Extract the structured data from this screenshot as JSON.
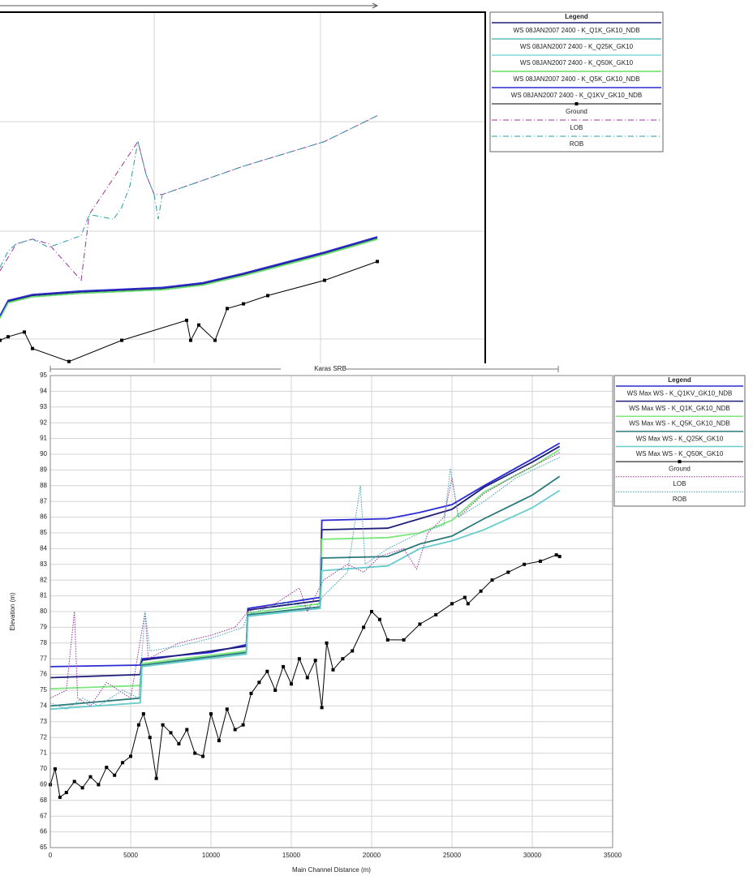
{
  "chart_data": [
    {
      "type": "line",
      "legend_title": "Legend",
      "xlim": [
        0,
        30000
      ],
      "ylim": [
        70,
        100
      ],
      "series": [
        {
          "name": "WS  08JAN2007 2400 - K_Q1K_GK10_NDB",
          "color": "#1f1f7a",
          "style": "solid",
          "x": [
            0,
            500,
            2000,
            5000,
            10000,
            12500,
            15000,
            17500,
            20000,
            23250
          ],
          "values": [
            74.1,
            75.4,
            75.9,
            76.2,
            76.5,
            76.9,
            77.7,
            78.6,
            79.5,
            80.8
          ]
        },
        {
          "name": "WS  08JAN2007 2400 - K_Q25K_GK10",
          "color": "#5fb8b8",
          "style": "solid",
          "x": [
            0,
            500,
            2000,
            5000,
            10000,
            12500,
            15000,
            17500,
            20000,
            23250
          ],
          "values": [
            74.0,
            75.3,
            75.8,
            76.1,
            76.4,
            76.8,
            77.6,
            78.5,
            79.4,
            80.7
          ]
        },
        {
          "name": "WS  08JAN2007 2400 - K_Q50K_GK10",
          "color": "#80d8d8",
          "style": "solid",
          "x": [
            0,
            500,
            2000,
            5000,
            10000,
            12500,
            15000,
            17500,
            20000,
            23250
          ],
          "values": [
            74.0,
            75.3,
            75.8,
            76.1,
            76.4,
            76.8,
            77.6,
            78.5,
            79.4,
            80.7
          ]
        },
        {
          "name": "WS  08JAN2007 2400 - K_Q5K_GK10_NDB",
          "color": "#66dd66",
          "style": "solid",
          "x": [
            0,
            500,
            2000,
            5000,
            10000,
            12500,
            15000,
            17500,
            20000,
            23250
          ],
          "values": [
            74.0,
            75.3,
            75.8,
            76.1,
            76.4,
            76.8,
            77.6,
            78.5,
            79.4,
            80.7
          ]
        },
        {
          "name": "WS  08JAN2007 2400 - K_Q1KV_GK10_NDB",
          "color": "#2a2ad0",
          "style": "solid",
          "x": [
            0,
            500,
            2000,
            5000,
            10000,
            12500,
            15000,
            17500,
            20000,
            23250
          ],
          "values": [
            74.2,
            75.5,
            76.0,
            76.3,
            76.6,
            77.0,
            77.8,
            78.7,
            79.6,
            80.9
          ]
        },
        {
          "name": "Ground",
          "color": "#000000",
          "style": "solid",
          "marker": "square",
          "x": [
            0,
            500,
            1500,
            2000,
            4250,
            7500,
            11500,
            11750,
            12250,
            13250,
            14000,
            15000,
            16500,
            20000,
            23250
          ],
          "values": [
            72.1,
            72.4,
            72.8,
            71.4,
            70.3,
            72.1,
            73.8,
            72.1,
            73.4,
            72.1,
            74.8,
            75.2,
            75.9,
            77.2,
            78.8
          ]
        },
        {
          "name": "LOB",
          "color": "#993399",
          "style": "dashdot",
          "x": [
            0,
            1000,
            2000,
            3000,
            5000,
            5500,
            8500,
            9000,
            9500,
            10000,
            15000,
            20000,
            23250
          ],
          "values": [
            78.0,
            80.3,
            80.7,
            80.3,
            77.2,
            82.8,
            89.0,
            86.2,
            84.5,
            84.5,
            86.9,
            89.0,
            91.2
          ]
        },
        {
          "name": "ROB",
          "color": "#2f9aa8",
          "style": "dashdot",
          "x": [
            0,
            500,
            1000,
            2000,
            3000,
            5000,
            5500,
            7000,
            7500,
            8000,
            8500,
            9000,
            9500,
            9750,
            10000,
            15000,
            20000,
            23250
          ],
          "values": [
            78.3,
            79.7,
            80.3,
            80.7,
            80.0,
            81.0,
            82.8,
            82.4,
            83.4,
            85.2,
            89.0,
            86.2,
            84.5,
            82.4,
            84.5,
            86.9,
            89.0,
            91.2
          ]
        }
      ]
    },
    {
      "type": "line",
      "title": "Karas SRB",
      "legend_title": "Legend",
      "xlabel": "Main Channel Distance (m)",
      "ylabel": "Elevation (m)",
      "xlim": [
        0,
        35000
      ],
      "ylim": [
        65,
        95
      ],
      "xticks": [
        0,
        5000,
        10000,
        15000,
        20000,
        25000,
        30000,
        35000
      ],
      "yticks": [
        65,
        66,
        67,
        68,
        69,
        70,
        71,
        72,
        73,
        74,
        75,
        76,
        77,
        78,
        79,
        80,
        81,
        82,
        83,
        84,
        85,
        86,
        87,
        88,
        89,
        90,
        91,
        92,
        93,
        94,
        95
      ],
      "grid": true,
      "series": [
        {
          "name": "WS  Max WS - K_Q1KV_GK10_NDB",
          "color": "#2b2bd4",
          "style": "solid",
          "x": [
            0,
            5600,
            5700,
            10000,
            12200,
            12300,
            16800,
            16900,
            21000,
            23000,
            25000,
            27000,
            30000,
            31700
          ],
          "values": [
            76.5,
            76.6,
            77.0,
            77.4,
            77.9,
            80.2,
            80.9,
            85.8,
            85.9,
            86.3,
            86.8,
            88.0,
            89.7,
            90.7
          ]
        },
        {
          "name": "WS  Max WS - K_Q1K_GK10_NDB",
          "color": "#1f1f7a",
          "style": "solid",
          "x": [
            0,
            5600,
            5700,
            12200,
            12300,
            16800,
            16900,
            21000,
            23000,
            25000,
            27000,
            30000,
            31700
          ],
          "values": [
            75.8,
            76.0,
            76.9,
            77.8,
            80.1,
            80.7,
            85.2,
            85.3,
            85.9,
            86.5,
            87.9,
            89.5,
            90.5
          ]
        },
        {
          "name": "WS  Max WS - K_Q5K_GK10_NDB",
          "color": "#7be87b",
          "style": "solid",
          "x": [
            0,
            5600,
            5700,
            12200,
            12300,
            16800,
            16900,
            21000,
            23000,
            25000,
            27000,
            30000,
            31700
          ],
          "values": [
            75.1,
            75.3,
            76.7,
            77.5,
            79.9,
            80.5,
            84.6,
            84.7,
            85.0,
            85.8,
            87.6,
            89.2,
            90.3
          ]
        },
        {
          "name": "WS  Max WS - K_Q25K_GK10",
          "color": "#2a7a7a",
          "style": "solid",
          "x": [
            0,
            5600,
            5700,
            12200,
            12300,
            16800,
            16900,
            21000,
            23000,
            25000,
            27000,
            30000,
            31700
          ],
          "values": [
            74.0,
            74.5,
            76.6,
            77.4,
            79.8,
            80.3,
            83.4,
            83.5,
            84.3,
            84.8,
            85.9,
            87.4,
            88.6
          ]
        },
        {
          "name": "WS  Max WS - K_Q50K_GK10",
          "color": "#66cccc",
          "style": "solid",
          "x": [
            0,
            5600,
            5700,
            12200,
            12300,
            16800,
            16900,
            21000,
            23000,
            25000,
            27000,
            30000,
            31700
          ],
          "values": [
            73.8,
            74.2,
            76.5,
            77.3,
            79.7,
            80.2,
            82.6,
            82.9,
            84.0,
            84.5,
            85.2,
            86.6,
            87.7
          ]
        },
        {
          "name": "Ground",
          "color": "#000000",
          "style": "solid",
          "marker": "square",
          "x": [
            0,
            300,
            600,
            1000,
            1500,
            2000,
            2500,
            3000,
            3500,
            4000,
            4500,
            5000,
            5500,
            5800,
            6200,
            6600,
            7000,
            7500,
            8000,
            8500,
            9000,
            9500,
            10000,
            10500,
            11000,
            11500,
            12000,
            12500,
            13000,
            13500,
            14000,
            14500,
            15000,
            15500,
            16000,
            16500,
            16900,
            17200,
            17600,
            18200,
            18800,
            19500,
            20000,
            20500,
            21000,
            22000,
            23000,
            24000,
            25000,
            25800,
            26000,
            26800,
            27500,
            28500,
            29500,
            30500,
            31500,
            31700
          ],
          "values": [
            69.0,
            70.0,
            68.2,
            68.5,
            69.2,
            68.8,
            69.5,
            69.0,
            70.1,
            69.6,
            70.4,
            70.8,
            72.8,
            73.5,
            72.0,
            69.4,
            72.8,
            72.3,
            71.6,
            72.5,
            71.0,
            70.8,
            73.5,
            71.8,
            73.8,
            72.5,
            72.8,
            74.8,
            75.5,
            76.2,
            75.0,
            76.5,
            75.4,
            77.0,
            75.8,
            76.9,
            73.9,
            78.0,
            76.3,
            77.0,
            77.5,
            79.0,
            80.0,
            79.5,
            78.2,
            78.2,
            79.2,
            79.8,
            80.5,
            80.9,
            80.5,
            81.3,
            82.0,
            82.5,
            83.0,
            83.2,
            83.6,
            83.5
          ]
        },
        {
          "name": "LOB",
          "color": "#993399",
          "style": "dotted",
          "x": [
            0,
            1000,
            1500,
            1700,
            2500,
            3500,
            5000,
            5900,
            6100,
            8000,
            10000,
            11500,
            12300,
            14000,
            15500,
            16000,
            17000,
            18500,
            19500,
            20500,
            22000,
            22800,
            23500,
            24500,
            25000,
            25400,
            27000,
            29000,
            31700
          ],
          "values": [
            74.5,
            75.0,
            80.0,
            74.5,
            74.0,
            75.5,
            74.5,
            80.0,
            77.0,
            78.0,
            78.5,
            79.0,
            80.0,
            80.5,
            81.5,
            80.0,
            82.0,
            83.0,
            82.5,
            83.5,
            84.0,
            82.7,
            85.0,
            86.0,
            88.5,
            86.0,
            87.5,
            88.7,
            90.1
          ]
        },
        {
          "name": "ROB",
          "color": "#40a0b0",
          "style": "dotted",
          "x": [
            0,
            1000,
            2000,
            3000,
            4500,
            5500,
            5900,
            6200,
            8000,
            10000,
            12000,
            12300,
            14500,
            16500,
            17000,
            18500,
            19300,
            19600,
            21000,
            23000,
            24500,
            24900,
            25400,
            27000,
            29000,
            31700
          ],
          "values": [
            74.2,
            73.8,
            74.5,
            74.0,
            75.0,
            74.5,
            80.0,
            77.5,
            77.8,
            78.3,
            79.0,
            79.8,
            80.6,
            80.2,
            81.0,
            82.5,
            88.0,
            83.0,
            84.0,
            85.0,
            85.5,
            89.1,
            86.0,
            87.0,
            88.5,
            89.8
          ]
        }
      ]
    }
  ]
}
